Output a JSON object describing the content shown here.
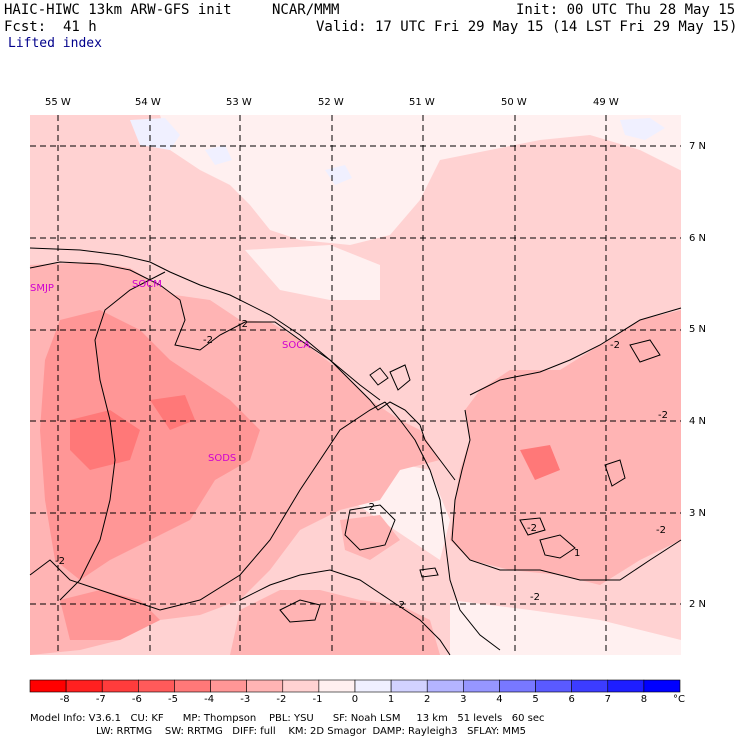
{
  "header": {
    "model": "HAIC-HIWC 13km ARW-GFS init",
    "org": "NCAR/MMM",
    "init": "Init: 00 UTC Thu 28 May 15",
    "fcst": "Fcst:  41 h",
    "valid": "Valid: 17 UTC Fri 29 May 15 (14 LST Fri 29 May 15)",
    "field": "Lifted index"
  },
  "axes": {
    "lon_labels": [
      "55 W",
      "54 W",
      "53 W",
      "52 W",
      "51 W",
      "50 W",
      "49 W"
    ],
    "lat_labels": [
      "7 N",
      "6 N",
      "5 N",
      "4 N",
      "3 N",
      "2 N"
    ]
  },
  "stations": [
    "SMJP",
    "SOCM",
    "SOCA",
    "SODS"
  ],
  "contour_labels": [
    "-2",
    "-2",
    "-2",
    "-2",
    "-2",
    "-2",
    "-2",
    "-2",
    "-2",
    "-2",
    "1"
  ],
  "colorbar": {
    "labels": [
      "-8",
      "-7",
      "-6",
      "-5",
      "-4",
      "-3",
      "-2",
      "-1",
      "0",
      "1",
      "2",
      "3",
      "4",
      "5",
      "6",
      "7",
      "8"
    ],
    "unit": "°C",
    "colors": [
      "#ff0000",
      "#ff2020",
      "#ff3c3c",
      "#ff5a5a",
      "#ff7878",
      "#ff9696",
      "#ffb4b4",
      "#ffd2d2",
      "#fff0f0",
      "#f0f0ff",
      "#d2d2ff",
      "#b4b4ff",
      "#9696ff",
      "#7878ff",
      "#5a5aff",
      "#3c3cff",
      "#1e1eff",
      "#0000ff"
    ]
  },
  "footer": {
    "line1": "Model Info: V3.6.1   CU: KF      MP: Thompson    PBL: YSU      SF: Noah LSM     13 km   51 levels   60 sec",
    "line2": "LW: RRTMG    SW: RRTMG   DIFF: full    KM: 2D Smagor  DAMP: Rayleigh3   SFLAY: MM5"
  }
}
